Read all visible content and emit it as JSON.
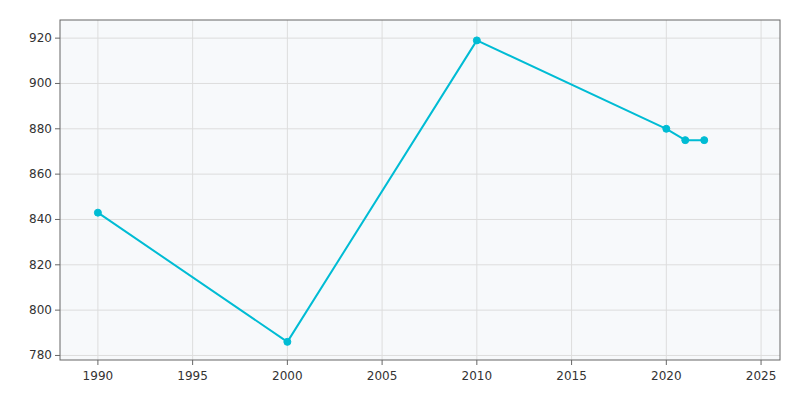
{
  "chart_data": {
    "type": "line",
    "x": [
      1990,
      2000,
      2010,
      2020,
      2021,
      2022
    ],
    "values": [
      843,
      786,
      919,
      880,
      875,
      875
    ],
    "color": "#00BCD4",
    "marker": "circle",
    "xlim": [
      1988,
      2026
    ],
    "ylim": [
      778,
      928
    ],
    "xticks": [
      1990,
      1995,
      2000,
      2005,
      2010,
      2015,
      2020,
      2025
    ],
    "yticks": [
      780,
      800,
      820,
      840,
      860,
      880,
      900,
      920
    ],
    "grid": true
  }
}
